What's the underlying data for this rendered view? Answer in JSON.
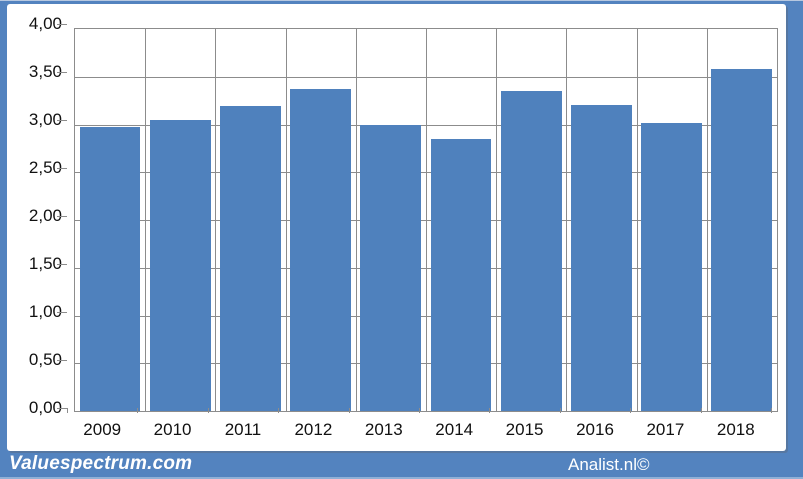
{
  "chart_data": {
    "type": "bar",
    "title": "",
    "categories": [
      "2009",
      "2010",
      "2011",
      "2012",
      "2013",
      "2014",
      "2015",
      "2016",
      "2017",
      "2018"
    ],
    "values": [
      2.97,
      3.05,
      3.19,
      3.37,
      3.0,
      2.85,
      3.35,
      3.2,
      3.02,
      3.58
    ],
    "xlabel": "",
    "ylabel": "",
    "ylim": [
      0,
      4
    ],
    "ytick_step": 0.5,
    "ytick_labels": [
      "4,00",
      "3,50",
      "3,00",
      "2,50",
      "2,00",
      "1,50",
      "1,00",
      "0,50",
      "0,00"
    ],
    "decimal_separator": ",",
    "grid": true,
    "legend": false,
    "bar_color": "#4f81bd",
    "gridline_color": "#8c8c8c",
    "frame_color": "#5383bf"
  },
  "footer": {
    "left_text": "Valuespectrum.com",
    "right_text": "Analist.nl©"
  }
}
